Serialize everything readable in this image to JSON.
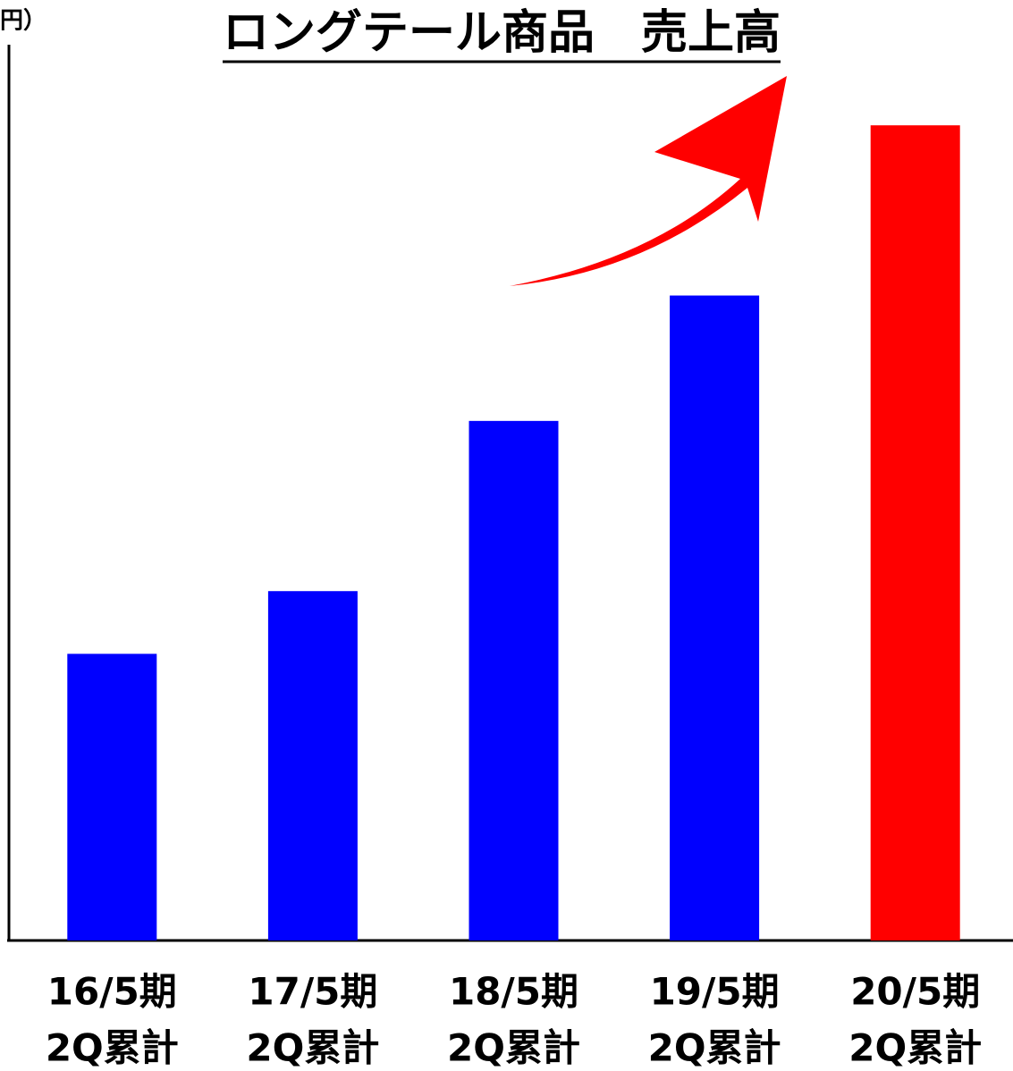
{
  "chart_data": {
    "type": "bar",
    "title": "ロングテール商品　売上高",
    "unit_label": "円）",
    "categories": [
      [
        "16/5期",
        "2Q累計"
      ],
      [
        "17/5期",
        "2Q累計"
      ],
      [
        "18/5期",
        "2Q累計"
      ],
      [
        "19/5期",
        "2Q累計"
      ],
      [
        "20/5期",
        "2Q累計"
      ]
    ],
    "values": [
      32,
      39,
      58,
      72,
      91
    ],
    "colors": [
      "#0000ff",
      "#0000ff",
      "#0000ff",
      "#0000ff",
      "#ff0000"
    ],
    "ylim": [
      0,
      100
    ]
  }
}
